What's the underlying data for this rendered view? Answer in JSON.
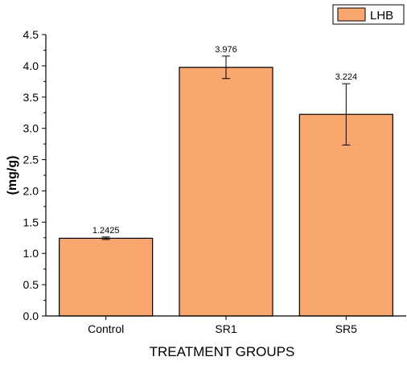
{
  "chart_data": {
    "type": "bar",
    "categories": [
      "Control",
      "SR1",
      "SR5"
    ],
    "series": [
      {
        "name": "LHB",
        "values": [
          1.2425,
          3.976,
          3.224
        ],
        "value_labels": [
          "1.2425",
          "3.976",
          "3.224"
        ],
        "error": [
          0.02,
          0.18,
          0.49
        ],
        "color": "#f9a66f"
      }
    ],
    "xlabel": "TREATMENT GROUPS",
    "ylabel": "(mg/g)",
    "ylim": [
      0,
      4.5
    ],
    "yticks": [
      0.0,
      0.5,
      1.0,
      1.5,
      2.0,
      2.5,
      3.0,
      3.5,
      4.0,
      4.5
    ],
    "ytick_labels": [
      "0.0",
      "0.5",
      "1.0",
      "1.5",
      "2.0",
      "2.5",
      "3.0",
      "3.5",
      "4.0",
      "4.5"
    ],
    "grid": false,
    "legend_position": "top-right",
    "bar_edge_color": "#000000"
  }
}
